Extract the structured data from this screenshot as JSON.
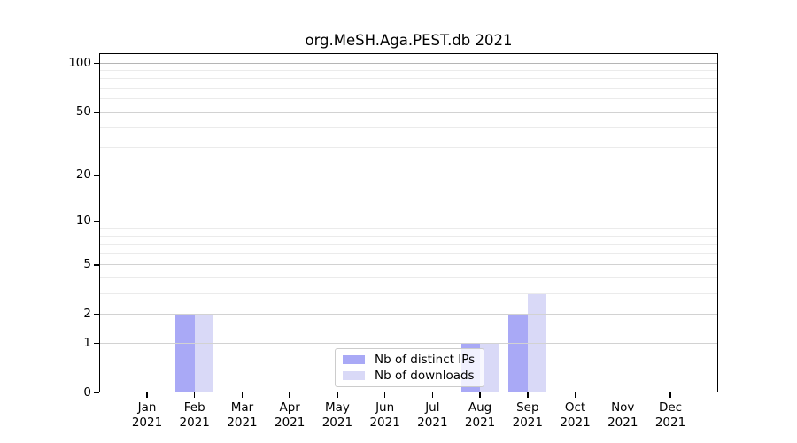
{
  "figure": {
    "background": "#ffffff"
  },
  "chart_data": {
    "type": "bar",
    "title": "org.MeSH.Aga.PEST.db 2021",
    "categories": [
      {
        "month": "Jan",
        "year": "2021"
      },
      {
        "month": "Feb",
        "year": "2021"
      },
      {
        "month": "Mar",
        "year": "2021"
      },
      {
        "month": "Apr",
        "year": "2021"
      },
      {
        "month": "May",
        "year": "2021"
      },
      {
        "month": "Jun",
        "year": "2021"
      },
      {
        "month": "Jul",
        "year": "2021"
      },
      {
        "month": "Aug",
        "year": "2021"
      },
      {
        "month": "Sep",
        "year": "2021"
      },
      {
        "month": "Oct",
        "year": "2021"
      },
      {
        "month": "Nov",
        "year": "2021"
      },
      {
        "month": "Dec",
        "year": "2021"
      }
    ],
    "series": [
      {
        "name": "Nb of distinct IPs",
        "color": "#a9a9f6",
        "values": [
          0,
          2,
          0,
          0,
          0,
          0,
          0,
          1,
          2,
          0,
          0,
          0
        ]
      },
      {
        "name": "Nb of downloads",
        "color": "#d9d9f7",
        "values": [
          0,
          2,
          0,
          0,
          0,
          0,
          0,
          1,
          3,
          0,
          0,
          0
        ]
      }
    ],
    "y_axis": {
      "scale": "log1p",
      "major_ticks": [
        0,
        1,
        2,
        5,
        10,
        20,
        50,
        100
      ],
      "minor_ticks": [
        3,
        4,
        6,
        7,
        8,
        9,
        30,
        40,
        60,
        70,
        80,
        90
      ],
      "max": 114
    },
    "grid": "horizontal",
    "legend_position": "inside-bottom-center"
  },
  "colors": {
    "major_grid": "#d2d2d2",
    "top_grid": "#b5b5b5",
    "minor_grid": "#ebebeb",
    "axis": "#000000"
  }
}
